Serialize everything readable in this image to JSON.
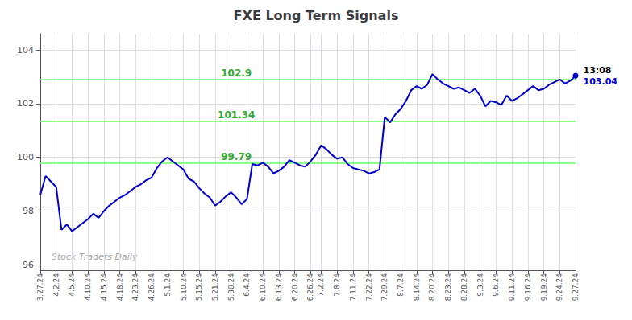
{
  "chart_data": {
    "type": "line",
    "title": "FXE Long Term Signals",
    "color": "#0000cc",
    "grid": true,
    "ylim": [
      95.8,
      104.6
    ],
    "yticks": [
      96,
      98,
      100,
      102,
      104
    ],
    "categories": [
      "3.27.24",
      null,
      null,
      "4.2.24",
      null,
      null,
      "4.5.24",
      null,
      null,
      "4.10.24",
      null,
      null,
      "4.15.24",
      null,
      null,
      "4.18.24",
      null,
      null,
      "4.23.24",
      null,
      null,
      "4.26.24",
      null,
      null,
      "5.1.24",
      null,
      null,
      "5.10.24",
      null,
      null,
      "5.15.24",
      null,
      null,
      "5.21.24",
      null,
      null,
      "5.30.24",
      null,
      null,
      "6.4.24",
      null,
      null,
      "6.10.24",
      null,
      null,
      "6.13.24",
      null,
      null,
      "6.20.24",
      null,
      null,
      "6.26.24",
      null,
      "7.2.24",
      null,
      null,
      "7.8.24",
      null,
      null,
      "7.11.24",
      null,
      null,
      "7.22.24",
      null,
      null,
      "7.29.24",
      null,
      null,
      "8.7.24",
      null,
      null,
      "8.14.24",
      null,
      null,
      "8.20.24",
      null,
      null,
      "8.23.24",
      null,
      null,
      "8.28.24",
      null,
      null,
      "9.3.24",
      null,
      null,
      "9.6.24",
      null,
      null,
      "9.11.24",
      null,
      null,
      "9.16.24",
      null,
      null,
      "9.19.24",
      null,
      null,
      "9.24.24",
      null,
      null,
      "9.27.24"
    ],
    "values": [
      98.6,
      99.3,
      99.1,
      98.9,
      97.3,
      97.5,
      97.25,
      97.4,
      97.55,
      97.7,
      97.9,
      97.75,
      98.0,
      98.2,
      98.35,
      98.5,
      98.6,
      98.75,
      98.9,
      99.0,
      99.15,
      99.25,
      99.6,
      99.85,
      100.0,
      99.85,
      99.7,
      99.55,
      99.2,
      99.1,
      98.85,
      98.65,
      98.5,
      98.2,
      98.35,
      98.55,
      98.7,
      98.5,
      98.25,
      98.45,
      99.75,
      99.7,
      99.8,
      99.65,
      99.4,
      99.5,
      99.65,
      99.9,
      99.8,
      99.7,
      99.65,
      99.85,
      100.1,
      100.45,
      100.3,
      100.1,
      99.95,
      100.0,
      99.75,
      99.6,
      99.55,
      99.5,
      99.4,
      99.45,
      99.55,
      101.5,
      101.3,
      101.6,
      101.8,
      102.1,
      102.5,
      102.65,
      102.55,
      102.7,
      103.1,
      102.9,
      102.75,
      102.65,
      102.55,
      102.6,
      102.5,
      102.4,
      102.55,
      102.3,
      101.9,
      102.1,
      102.05,
      101.95,
      102.3,
      102.1,
      102.2,
      102.35,
      102.5,
      102.65,
      102.5,
      102.55,
      102.7,
      102.8,
      102.9,
      102.75,
      102.85,
      103.04
    ],
    "hlines": [
      {
        "value": 102.9,
        "label": "102.9",
        "color": "#66ff66",
        "label_color": "#33aa33"
      },
      {
        "value": 101.34,
        "label": "101.34",
        "color": "#66ff66",
        "label_color": "#33aa33"
      },
      {
        "value": 99.79,
        "label": "99.79",
        "color": "#66ff66",
        "label_color": "#33aa33"
      }
    ],
    "annotations": [
      {
        "text": "13:08",
        "color": "#000000"
      },
      {
        "text": "103.04",
        "color": "#0000cc"
      }
    ],
    "watermark": {
      "text": "Stock Traders Daily",
      "color": "#aaaaaa"
    }
  }
}
